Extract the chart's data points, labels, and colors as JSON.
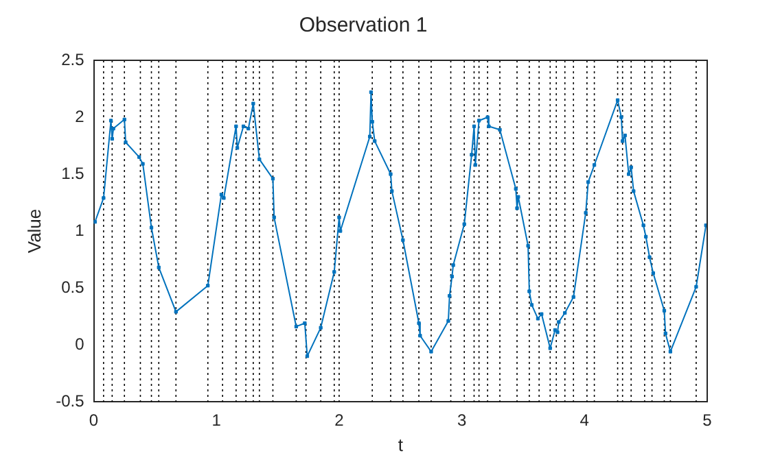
{
  "chart_data": {
    "type": "line",
    "title": "Observation 1",
    "xlabel": "t",
    "ylabel": "Value",
    "x": [
      0.01,
      0.08,
      0.14,
      0.15,
      0.16,
      0.25,
      0.26,
      0.37,
      0.4,
      0.47,
      0.53,
      0.67,
      0.93,
      1.04,
      1.06,
      1.16,
      1.17,
      1.22,
      1.26,
      1.3,
      1.35,
      1.46,
      1.47,
      1.65,
      1.72,
      1.74,
      1.85,
      1.96,
      2.0,
      2.01,
      2.25,
      2.26,
      2.27,
      2.29,
      2.42,
      2.43,
      2.52,
      2.65,
      2.66,
      2.75,
      2.89,
      2.9,
      2.92,
      2.93,
      3.02,
      3.08,
      3.1,
      3.11,
      3.14,
      3.21,
      3.22,
      3.31,
      3.44,
      3.45,
      3.46,
      3.54,
      3.55,
      3.57,
      3.62,
      3.65,
      3.72,
      3.76,
      3.78,
      3.79,
      3.84,
      3.91,
      4.01,
      4.03,
      4.08,
      4.27,
      4.3,
      4.31,
      4.33,
      4.36,
      4.38,
      4.4,
      4.48,
      4.5,
      4.53,
      4.56,
      4.65,
      4.66,
      4.7,
      4.91,
      4.99
    ],
    "series": [
      {
        "color": "#0072bd",
        "values": [
          1.08,
          1.29,
          1.97,
          1.81,
          1.9,
          1.98,
          1.78,
          1.65,
          1.59,
          1.03,
          0.68,
          0.29,
          0.52,
          1.32,
          1.29,
          1.92,
          1.73,
          1.92,
          1.9,
          2.12,
          1.63,
          1.46,
          1.12,
          0.16,
          0.19,
          -0.1,
          0.15,
          0.64,
          1.12,
          1.0,
          1.83,
          2.22,
          1.96,
          1.79,
          1.5,
          1.35,
          0.92,
          0.19,
          0.08,
          -0.06,
          0.21,
          0.43,
          0.6,
          0.7,
          1.06,
          1.67,
          1.92,
          1.58,
          1.97,
          2.0,
          1.92,
          1.89,
          1.37,
          1.2,
          1.3,
          0.87,
          0.47,
          0.35,
          0.23,
          0.27,
          -0.03,
          0.13,
          0.11,
          0.2,
          0.28,
          0.42,
          1.16,
          1.43,
          1.58,
          2.15,
          2.0,
          1.79,
          1.84,
          1.5,
          1.56,
          1.35,
          1.05,
          0.95,
          0.77,
          0.63,
          0.3,
          0.1,
          -0.06,
          0.51,
          1.05
        ]
      }
    ],
    "xlim": [
      0,
      5
    ],
    "xticks": [
      0,
      1,
      2,
      3,
      4,
      5
    ],
    "ylim": [
      -0.5,
      2.5
    ],
    "yticks": [
      -0.5,
      0,
      0.5,
      1,
      1.5,
      2,
      2.5
    ],
    "grid": false,
    "legend": false,
    "marker": "square",
    "line_style": "solid",
    "ref_lines": [
      {
        "axis": "x",
        "value": 0.08,
        "color": "#000000",
        "line_style": "dotted"
      },
      {
        "axis": "x",
        "value": 0.15,
        "color": "#000000",
        "line_style": "dotted"
      },
      {
        "axis": "x",
        "value": 0.25,
        "color": "#000000",
        "line_style": "dotted"
      },
      {
        "axis": "x",
        "value": 0.38,
        "color": "#000000",
        "line_style": "dotted"
      },
      {
        "axis": "x",
        "value": 0.47,
        "color": "#000000",
        "line_style": "dotted"
      },
      {
        "axis": "x",
        "value": 0.53,
        "color": "#000000",
        "line_style": "dotted"
      },
      {
        "axis": "x",
        "value": 0.67,
        "color": "#000000",
        "line_style": "dotted"
      },
      {
        "axis": "x",
        "value": 0.93,
        "color": "#000000",
        "line_style": "dotted"
      },
      {
        "axis": "x",
        "value": 1.05,
        "color": "#000000",
        "line_style": "dotted"
      },
      {
        "axis": "x",
        "value": 1.16,
        "color": "#000000",
        "line_style": "dotted"
      },
      {
        "axis": "x",
        "value": 1.24,
        "color": "#000000",
        "line_style": "dotted"
      },
      {
        "axis": "x",
        "value": 1.3,
        "color": "#000000",
        "line_style": "dotted"
      },
      {
        "axis": "x",
        "value": 1.35,
        "color": "#000000",
        "line_style": "dotted"
      },
      {
        "axis": "x",
        "value": 1.46,
        "color": "#000000",
        "line_style": "dotted"
      },
      {
        "axis": "x",
        "value": 1.65,
        "color": "#000000",
        "line_style": "dotted"
      },
      {
        "axis": "x",
        "value": 1.73,
        "color": "#000000",
        "line_style": "dotted"
      },
      {
        "axis": "x",
        "value": 1.85,
        "color": "#000000",
        "line_style": "dotted"
      },
      {
        "axis": "x",
        "value": 1.96,
        "color": "#000000",
        "line_style": "dotted"
      },
      {
        "axis": "x",
        "value": 2.0,
        "color": "#000000",
        "line_style": "dotted"
      },
      {
        "axis": "x",
        "value": 2.27,
        "color": "#000000",
        "line_style": "dotted"
      },
      {
        "axis": "x",
        "value": 2.42,
        "color": "#000000",
        "line_style": "dotted"
      },
      {
        "axis": "x",
        "value": 2.52,
        "color": "#000000",
        "line_style": "dotted"
      },
      {
        "axis": "x",
        "value": 2.65,
        "color": "#000000",
        "line_style": "dotted"
      },
      {
        "axis": "x",
        "value": 2.75,
        "color": "#000000",
        "line_style": "dotted"
      },
      {
        "axis": "x",
        "value": 2.91,
        "color": "#000000",
        "line_style": "dotted"
      },
      {
        "axis": "x",
        "value": 3.02,
        "color": "#000000",
        "line_style": "dotted"
      },
      {
        "axis": "x",
        "value": 3.1,
        "color": "#000000",
        "line_style": "dotted"
      },
      {
        "axis": "x",
        "value": 3.14,
        "color": "#000000",
        "line_style": "dotted"
      },
      {
        "axis": "x",
        "value": 3.21,
        "color": "#000000",
        "line_style": "dotted"
      },
      {
        "axis": "x",
        "value": 3.31,
        "color": "#000000",
        "line_style": "dotted"
      },
      {
        "axis": "x",
        "value": 3.45,
        "color": "#000000",
        "line_style": "dotted"
      },
      {
        "axis": "x",
        "value": 3.55,
        "color": "#000000",
        "line_style": "dotted"
      },
      {
        "axis": "x",
        "value": 3.63,
        "color": "#000000",
        "line_style": "dotted"
      },
      {
        "axis": "x",
        "value": 3.72,
        "color": "#000000",
        "line_style": "dotted"
      },
      {
        "axis": "x",
        "value": 3.77,
        "color": "#000000",
        "line_style": "dotted"
      },
      {
        "axis": "x",
        "value": 3.84,
        "color": "#000000",
        "line_style": "dotted"
      },
      {
        "axis": "x",
        "value": 3.91,
        "color": "#000000",
        "line_style": "dotted"
      },
      {
        "axis": "x",
        "value": 4.02,
        "color": "#000000",
        "line_style": "dotted"
      },
      {
        "axis": "x",
        "value": 4.08,
        "color": "#000000",
        "line_style": "dotted"
      },
      {
        "axis": "x",
        "value": 4.27,
        "color": "#000000",
        "line_style": "dotted"
      },
      {
        "axis": "x",
        "value": 4.31,
        "color": "#000000",
        "line_style": "dotted"
      },
      {
        "axis": "x",
        "value": 4.38,
        "color": "#000000",
        "line_style": "dotted"
      },
      {
        "axis": "x",
        "value": 4.49,
        "color": "#000000",
        "line_style": "dotted"
      },
      {
        "axis": "x",
        "value": 4.55,
        "color": "#000000",
        "line_style": "dotted"
      },
      {
        "axis": "x",
        "value": 4.65,
        "color": "#000000",
        "line_style": "dotted"
      },
      {
        "axis": "x",
        "value": 4.7,
        "color": "#000000",
        "line_style": "dotted"
      },
      {
        "axis": "x",
        "value": 4.91,
        "color": "#000000",
        "line_style": "dotted"
      }
    ]
  }
}
